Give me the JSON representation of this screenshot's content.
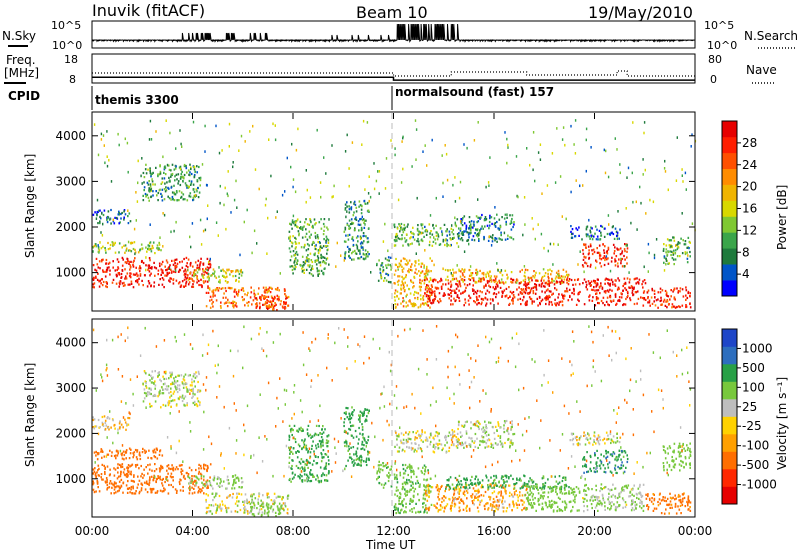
{
  "header": {
    "station": "Inuvik (fitACF)",
    "beam": "Beam 10",
    "date": "19/May/2010"
  },
  "params": {
    "nsky_label": "N.Sky",
    "nsearch_label": "N.Search",
    "freq_label_1": "Freq.",
    "freq_label_2": "[MHz]",
    "nave_label": "Nave",
    "cpid_label": "CPID",
    "nsky_ticks": [
      "10^5",
      "10^0"
    ],
    "nsearch_ticks": [
      "10^5",
      "10^0"
    ],
    "freq_ticks": [
      "18",
      "8"
    ],
    "nave_ticks": [
      "80",
      "0"
    ],
    "cpid_segments": [
      {
        "text": "themis 3300",
        "start_hour": 0
      },
      {
        "text": "normalsound (fast) 157",
        "start_hour": 12
      }
    ]
  },
  "panels": {
    "power": {
      "ylabel": "Slant Range [km]",
      "colorbar_label": "Power [dB]",
      "colorbar_ticks": [
        "28",
        "24",
        "20",
        "16",
        "12",
        "8",
        "4"
      ],
      "colorbar_colors": [
        "#0000ff",
        "#0055c8",
        "#1e7a3c",
        "#3aa54a",
        "#7fc832",
        "#d8d800",
        "#f0b400",
        "#ff8c00",
        "#ff5000",
        "#ff1e00",
        "#e60000"
      ]
    },
    "velocity": {
      "ylabel": "Slant Range [km]",
      "colorbar_label": "Velocity [m s⁻¹]",
      "colorbar_ticks": [
        "1000",
        "500",
        "100",
        "25",
        "-25",
        "-100",
        "-500",
        "-1000"
      ],
      "colorbar_colors": [
        "#1e46c8",
        "#2d6ebe",
        "#28a046",
        "#78c83c",
        "#bebebe",
        "#ffd200",
        "#ffa000",
        "#ff6e00",
        "#ff2800",
        "#e60000"
      ]
    }
  },
  "xaxis": {
    "label": "Time UT",
    "ticks": [
      "00:00",
      "04:00",
      "08:00",
      "12:00",
      "16:00",
      "20:00",
      "00:00"
    ]
  },
  "chart_data": {
    "type": "heatmap",
    "title": "Inuvik (fitACF) Beam 10 19/May/2010",
    "xlabel": "Time UT",
    "ylabel": "Slant Range [km]",
    "xlim_hours": [
      0,
      24
    ],
    "ylim_km": [
      180,
      4500
    ],
    "y_ticks": [
      1000,
      2000,
      3000,
      4000
    ],
    "power_range_db": [
      0,
      30
    ],
    "velocity_range_ms": [
      -1000,
      1000
    ],
    "frequency_mhz": {
      "before_12": 10,
      "after_12": 9
    },
    "regions": [
      {
        "t": [
          0.0,
          4.7
        ],
        "r": [
          700,
          1350
        ],
        "p": 27,
        "v": -350
      },
      {
        "t": [
          0.0,
          2.8
        ],
        "r": [
          1450,
          1700
        ],
        "p": 14,
        "v": -300
      },
      {
        "t": [
          0.0,
          1.5
        ],
        "r": [
          2100,
          2400
        ],
        "p": 5,
        "v": 0
      },
      {
        "t": [
          2.0,
          4.3
        ],
        "r": [
          2600,
          3400
        ],
        "p": 9,
        "v": 80
      },
      {
        "t": [
          4.5,
          7.8
        ],
        "r": [
          250,
          700
        ],
        "p": 22,
        "v": 60
      },
      {
        "t": [
          3.8,
          6.0
        ],
        "r": [
          800,
          1100
        ],
        "p": 15,
        "v": 150
      },
      {
        "t": [
          6.3,
          7.7
        ],
        "r": [
          200,
          500
        ],
        "p": 25,
        "v": 250
      },
      {
        "t": [
          7.8,
          9.4
        ],
        "r": [
          950,
          2200
        ],
        "p": 10,
        "v": 600
      },
      {
        "t": [
          10.0,
          11.0
        ],
        "r": [
          1300,
          2600
        ],
        "p": 8,
        "v": 700
      },
      {
        "t": [
          11.3,
          11.9
        ],
        "r": [
          800,
          1400
        ],
        "p": 9,
        "v": 400
      },
      {
        "t": [
          12.0,
          13.5
        ],
        "r": [
          250,
          1350
        ],
        "p": 18,
        "v": 400
      },
      {
        "t": [
          12.0,
          14.5
        ],
        "r": [
          1600,
          2100
        ],
        "p": 10,
        "v": 60
      },
      {
        "t": [
          13.2,
          17.3
        ],
        "r": [
          300,
          900
        ],
        "p": 27,
        "v": -60
      },
      {
        "t": [
          14.0,
          19.0
        ],
        "r": [
          800,
          1100
        ],
        "p": 18,
        "v": 700
      },
      {
        "t": [
          14.5,
          16.8
        ],
        "r": [
          1700,
          2300
        ],
        "p": 7,
        "v": 90
      },
      {
        "t": [
          17.2,
          19.4
        ],
        "r": [
          300,
          900
        ],
        "p": 27,
        "v": 350
      },
      {
        "t": [
          19.5,
          22.0
        ],
        "r": [
          300,
          900
        ],
        "p": 27,
        "v": 120
      },
      {
        "t": [
          22.0,
          23.8
        ],
        "r": [
          250,
          700
        ],
        "p": 26,
        "v": -150
      },
      {
        "t": [
          19.5,
          21.3
        ],
        "r": [
          1150,
          1650
        ],
        "p": 26,
        "v": 800
      },
      {
        "t": [
          19.0,
          21.0
        ],
        "r": [
          1750,
          2050
        ],
        "p": 6,
        "v": 40
      },
      {
        "t": [
          22.7,
          23.8
        ],
        "r": [
          1200,
          1800
        ],
        "p": 10,
        "v": 300
      }
    ]
  }
}
